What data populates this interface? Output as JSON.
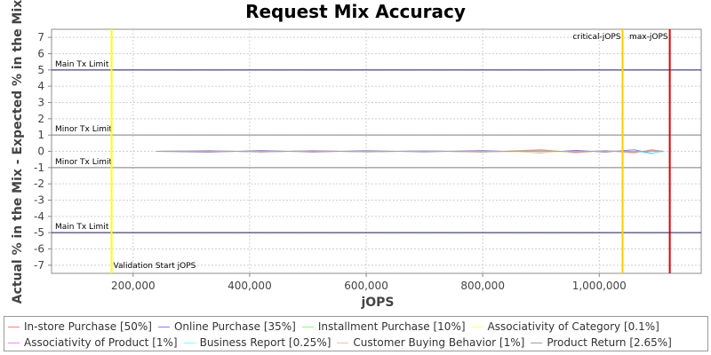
{
  "chart_data": {
    "type": "line",
    "title": "Request Mix Accuracy",
    "xlabel": "jOPS",
    "ylabel": "Actual % in the Mix - Expected % in the Mix",
    "xlim": [
      60000,
      1175000
    ],
    "ylim": [
      -7.5,
      7.5
    ],
    "x_ticks": [
      200000,
      400000,
      600000,
      800000,
      1000000
    ],
    "x_tick_labels": [
      "200,000",
      "400,000",
      "600,000",
      "800,000",
      "1,000,000"
    ],
    "y_ticks": [
      7,
      6,
      5,
      4,
      3,
      2,
      1,
      0,
      -1,
      -2,
      -3,
      -4,
      -5,
      -6,
      -7
    ],
    "y_tick_labels": [
      "7",
      "6",
      "5",
      "4",
      "3",
      "2",
      "1",
      "0",
      "-1",
      "-2",
      "-3",
      "-4",
      "-5",
      "-6",
      "-7"
    ],
    "grid": true,
    "legend_position": "bottom",
    "horizontal_markers": [
      {
        "label": "Main Tx Limit",
        "y": 5,
        "color": "#1a1a66"
      },
      {
        "label": "Minor Tx Limit",
        "y": 1,
        "color": "#808080"
      },
      {
        "label": "Minor Tx Limit",
        "y": -1,
        "color": "#808080"
      },
      {
        "label": "Main Tx Limit",
        "y": -5,
        "color": "#1a1a66"
      }
    ],
    "vertical_markers": [
      {
        "label": "Validation Start jOPS",
        "x": 163000,
        "color": "#ffff00"
      },
      {
        "label": "critical-jOPS",
        "x": 1040000,
        "color": "#ffcc00"
      },
      {
        "label": "max-jOPS",
        "x": 1121000,
        "color": "#e00000"
      }
    ],
    "series": [
      {
        "name": "In-store Purchase [50%]",
        "color": "#ff8080",
        "x": [
          240000,
          330000,
          420000,
          510000,
          600000,
          700000,
          800000,
          900000,
          960000,
          1010000,
          1060000,
          1090000,
          1110000
        ],
        "y": [
          0.0,
          0.05,
          -0.05,
          0.05,
          -0.04,
          0.03,
          -0.05,
          0.1,
          -0.08,
          0.05,
          -0.1,
          0.1,
          0.0
        ]
      },
      {
        "name": "Online Purchase [35%]",
        "color": "#8080ff",
        "x": [
          240000,
          330000,
          420000,
          510000,
          600000,
          700000,
          800000,
          900000,
          960000,
          1010000,
          1060000,
          1090000,
          1110000
        ],
        "y": [
          0.0,
          -0.05,
          0.05,
          -0.04,
          0.04,
          -0.03,
          0.05,
          -0.08,
          0.06,
          -0.05,
          0.1,
          -0.12,
          0.0
        ]
      },
      {
        "name": "Installment Purchase [10%]",
        "color": "#80ff80",
        "x": [
          240000,
          330000,
          420000,
          510000,
          600000,
          700000,
          800000,
          900000,
          960000,
          1010000,
          1060000,
          1090000,
          1110000
        ],
        "y": [
          0.0,
          0.02,
          -0.02,
          0.02,
          -0.02,
          0.02,
          -0.02,
          0.03,
          -0.02,
          0.02,
          -0.03,
          0.03,
          0.0
        ]
      },
      {
        "name": "Associativity of Category [0.1%]",
        "color": "#ffff80",
        "x": [
          240000,
          330000,
          420000,
          510000,
          600000,
          700000,
          800000,
          900000,
          960000,
          1010000,
          1060000,
          1090000,
          1110000
        ],
        "y": [
          0.0,
          0.0,
          0.0,
          0.0,
          0.0,
          0.0,
          0.0,
          -0.05,
          0.0,
          0.0,
          0.0,
          0.0,
          0.0
        ]
      },
      {
        "name": "Associativity of Product [1%]",
        "color": "#ff80ff",
        "x": [
          240000,
          330000,
          420000,
          510000,
          600000,
          700000,
          800000,
          900000,
          960000,
          1010000,
          1060000,
          1090000,
          1110000
        ],
        "y": [
          0.0,
          0.01,
          -0.01,
          0.01,
          -0.01,
          0.01,
          -0.01,
          0.01,
          -0.01,
          0.01,
          -0.01,
          0.01,
          0.0
        ]
      },
      {
        "name": "Business Report [0.25%]",
        "color": "#80ffff",
        "x": [
          240000,
          330000,
          420000,
          510000,
          600000,
          700000,
          800000,
          900000,
          960000,
          1010000,
          1060000,
          1090000,
          1110000
        ],
        "y": [
          0.0,
          0.0,
          0.0,
          0.0,
          0.0,
          0.0,
          0.0,
          0.0,
          0.0,
          0.0,
          0.0,
          -0.15,
          0.0
        ]
      },
      {
        "name": "Customer Buying Behavior [1%]",
        "color": "#ffc0a0",
        "x": [
          240000,
          330000,
          420000,
          510000,
          600000,
          700000,
          800000,
          900000,
          960000,
          1010000,
          1060000,
          1090000,
          1110000
        ],
        "y": [
          0.0,
          0.01,
          -0.01,
          0.01,
          -0.01,
          0.01,
          -0.01,
          0.01,
          -0.01,
          0.01,
          -0.01,
          0.01,
          0.0
        ]
      },
      {
        "name": "Product Return [2.65%]",
        "color": "#a0a0a0",
        "x": [
          240000,
          330000,
          420000,
          510000,
          600000,
          700000,
          800000,
          900000,
          960000,
          1010000,
          1060000,
          1090000,
          1110000
        ],
        "y": [
          0.0,
          0.02,
          -0.02,
          0.02,
          -0.02,
          0.02,
          -0.02,
          0.02,
          -0.02,
          0.02,
          -0.02,
          0.02,
          0.0
        ]
      }
    ]
  }
}
